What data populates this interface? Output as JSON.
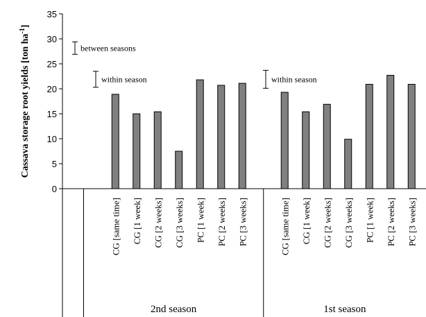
{
  "chart_data": {
    "type": "bar",
    "y_label": "Cassava storage root yields [ton ha",
    "y_label_sup": "-1",
    "y_label_end": "]",
    "categories": [
      null,
      null,
      "CG [same time]",
      "CG [1 week]",
      "CG [2 weeks]",
      "CG [3 weeks]",
      "PC [1 week]",
      "PC [2 weeks]",
      "PC [3 weeks]",
      null,
      "CG [same time]",
      "CG [1 week]",
      "CG [2 weeks]",
      "CG [3 weeks]",
      "PC [1 week]",
      "PC [2 weeks]",
      "PC [3 weeks]"
    ],
    "values": [
      null,
      null,
      18.9,
      15.0,
      15.4,
      7.5,
      21.8,
      20.7,
      21.1,
      null,
      19.3,
      15.4,
      16.9,
      9.9,
      20.9,
      22.7,
      20.9
    ],
    "groups": [
      "2nd season",
      "1st season"
    ],
    "color": "#808080",
    "ylim": [
      0,
      35
    ],
    "yticks": [
      0,
      5,
      10,
      15,
      20,
      25,
      30,
      35
    ],
    "grid": false,
    "error_bars": [
      {
        "label": "between seasons",
        "low": 26.9,
        "high": 29.4
      },
      {
        "label": "within season",
        "low": 20.3,
        "high": 23.5
      },
      {
        "label": "within season",
        "low": 20.1,
        "high": 23.7
      }
    ]
  }
}
